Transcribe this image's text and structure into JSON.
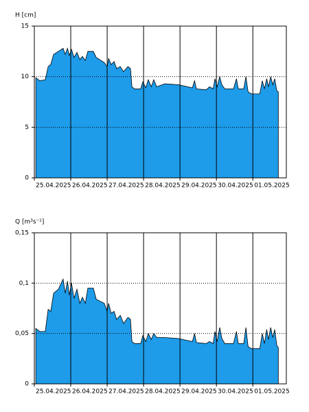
{
  "chart_data": [
    {
      "type": "area",
      "y_label": "H [cm]",
      "color": "#1e9be9",
      "grid": true,
      "x": [
        0.04,
        0.15,
        0.3,
        0.38,
        0.45,
        0.53,
        0.66,
        0.79,
        0.85,
        0.91,
        0.96,
        1.02,
        1.09,
        1.17,
        1.25,
        1.32,
        1.4,
        1.47,
        1.62,
        1.7,
        1.92,
        2.0,
        2.04,
        2.11,
        2.19,
        2.26,
        2.36,
        2.45,
        2.57,
        2.64,
        2.68,
        2.75,
        2.92,
        2.98,
        3.06,
        3.13,
        3.21,
        3.28,
        3.36,
        3.58,
        3.96,
        4.34,
        4.4,
        4.45,
        4.72,
        4.81,
        4.91,
        4.96,
        5.02,
        5.09,
        5.15,
        5.23,
        5.47,
        5.55,
        5.6,
        5.75,
        5.81,
        5.87,
        5.96,
        6.19,
        6.26,
        6.32,
        6.38,
        6.43,
        6.49,
        6.55,
        6.6,
        6.66,
        6.7
      ],
      "values": [
        9.9,
        9.6,
        9.7,
        11.0,
        11.2,
        12.2,
        12.5,
        12.8,
        12.2,
        12.8,
        12.1,
        12.7,
        11.9,
        12.4,
        11.7,
        12.0,
        11.6,
        12.5,
        12.5,
        11.9,
        11.4,
        11.0,
        11.8,
        11.2,
        11.5,
        10.8,
        11.0,
        10.5,
        11.0,
        10.8,
        9.0,
        8.8,
        8.8,
        9.5,
        8.9,
        9.7,
        9.0,
        9.7,
        9.0,
        9.3,
        9.2,
        8.9,
        9.6,
        8.8,
        8.7,
        9.0,
        8.8,
        9.8,
        9.0,
        10.0,
        9.2,
        8.8,
        8.8,
        9.8,
        8.8,
        8.8,
        10.0,
        8.5,
        8.3,
        8.3,
        9.6,
        8.8,
        9.8,
        9.0,
        10.0,
        9.2,
        9.8,
        8.6,
        8.5
      ],
      "xlim": [
        0,
        6.92
      ],
      "xticks": [
        {
          "value": 0,
          "label": "25.04.2025"
        },
        {
          "value": 1,
          "label": "26.04.2025"
        },
        {
          "value": 2,
          "label": "27.04.2025"
        },
        {
          "value": 3,
          "label": "28.04.2025"
        },
        {
          "value": 4,
          "label": "29.04.2025"
        },
        {
          "value": 5,
          "label": "30.04.2025"
        },
        {
          "value": 6,
          "label": "01.05.2025"
        }
      ],
      "ylim": [
        0,
        15
      ],
      "yticks": [
        0,
        5,
        10,
        15
      ]
    },
    {
      "type": "area",
      "y_label": "Q [m³s⁻¹]",
      "color": "#1e9be9",
      "grid": true,
      "x": [
        0.04,
        0.15,
        0.3,
        0.38,
        0.45,
        0.53,
        0.66,
        0.79,
        0.85,
        0.91,
        0.96,
        1.02,
        1.09,
        1.17,
        1.25,
        1.32,
        1.4,
        1.47,
        1.62,
        1.7,
        1.92,
        2.0,
        2.04,
        2.11,
        2.19,
        2.26,
        2.36,
        2.45,
        2.57,
        2.64,
        2.68,
        2.75,
        2.92,
        2.98,
        3.06,
        3.13,
        3.21,
        3.28,
        3.36,
        3.58,
        3.96,
        4.34,
        4.4,
        4.45,
        4.72,
        4.81,
        4.91,
        4.96,
        5.02,
        5.09,
        5.15,
        5.23,
        5.47,
        5.55,
        5.6,
        5.75,
        5.81,
        5.87,
        5.96,
        6.19,
        6.26,
        6.32,
        6.38,
        6.43,
        6.49,
        6.55,
        6.6,
        6.66,
        6.7
      ],
      "values": [
        0.055,
        0.052,
        0.052,
        0.074,
        0.072,
        0.09,
        0.094,
        0.104,
        0.09,
        0.102,
        0.088,
        0.1,
        0.085,
        0.094,
        0.08,
        0.086,
        0.08,
        0.095,
        0.095,
        0.084,
        0.08,
        0.072,
        0.08,
        0.07,
        0.072,
        0.064,
        0.068,
        0.06,
        0.066,
        0.064,
        0.042,
        0.04,
        0.04,
        0.048,
        0.042,
        0.05,
        0.044,
        0.05,
        0.046,
        0.046,
        0.045,
        0.042,
        0.05,
        0.041,
        0.04,
        0.042,
        0.04,
        0.052,
        0.042,
        0.056,
        0.045,
        0.04,
        0.04,
        0.052,
        0.04,
        0.04,
        0.056,
        0.037,
        0.035,
        0.035,
        0.05,
        0.04,
        0.054,
        0.044,
        0.056,
        0.046,
        0.054,
        0.038,
        0.036
      ],
      "xlim": [
        0,
        6.92
      ],
      "xticks": [
        {
          "value": 0,
          "label": "25.04.2025"
        },
        {
          "value": 1,
          "label": "26.04.2025"
        },
        {
          "value": 2,
          "label": "27.04.2025"
        },
        {
          "value": 3,
          "label": "28.04.2025"
        },
        {
          "value": 4,
          "label": "29.04.2025"
        },
        {
          "value": 5,
          "label": "30.04.2025"
        },
        {
          "value": 6,
          "label": "01.05.2025"
        }
      ],
      "ylim": [
        0,
        0.15
      ],
      "yticks": [
        0,
        {
          "value": 0.05,
          "label": "0,05"
        },
        {
          "value": 0.1,
          "label": "0,1"
        },
        {
          "value": 0.15,
          "label": "0,15"
        }
      ]
    }
  ]
}
